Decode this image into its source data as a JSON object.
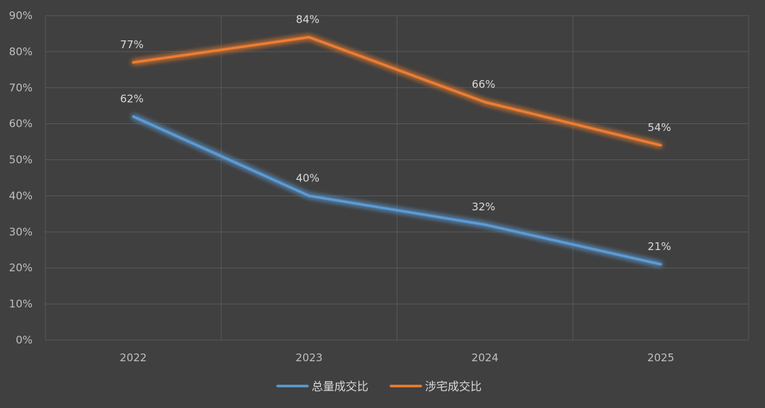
{
  "chart_data": {
    "type": "line",
    "categories": [
      "2022",
      "2023",
      "2024",
      "2025"
    ],
    "ylim": [
      0,
      90
    ],
    "y_ticks": [
      "0%",
      "10%",
      "20%",
      "30%",
      "40%",
      "50%",
      "60%",
      "70%",
      "80%",
      "90%"
    ],
    "grid": true,
    "legend_position": "bottom",
    "series": [
      {
        "name": "总量成交比",
        "color": "#5b9bd5",
        "values": [
          62,
          40,
          32,
          21
        ],
        "labels": [
          "62%",
          "40%",
          "32%",
          "21%"
        ]
      },
      {
        "name": "涉宅成交比",
        "color": "#ed7d31",
        "values": [
          77,
          84,
          66,
          54
        ],
        "labels": [
          "77%",
          "84%",
          "66%",
          "54%"
        ]
      }
    ]
  }
}
